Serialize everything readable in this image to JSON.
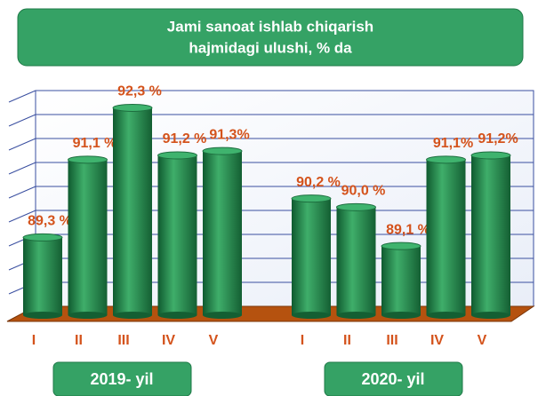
{
  "chart_data": {
    "type": "bar",
    "title": [
      "Jami sanoat ishlab chiqarish",
      "hajmidagi ulushi, % da"
    ],
    "color": "#2e9a5c",
    "ylim": [
      87.5,
      92.7
    ],
    "groups": [
      {
        "label": "2019- yil",
        "categories": [
          "I",
          "II",
          "III",
          "IV",
          "V"
        ],
        "values": [
          89.3,
          91.1,
          92.3,
          91.2,
          91.3
        ],
        "value_labels": [
          "89,3 %",
          "91,1 %",
          "92,3 %",
          "91,2 %",
          "91,3%"
        ]
      },
      {
        "label": "2020- yil",
        "categories": [
          "I",
          "II",
          "III",
          "IV",
          "V"
        ],
        "values": [
          90.2,
          90.0,
          89.1,
          91.1,
          91.2
        ],
        "value_labels": [
          "90,2 %",
          "90,0 %",
          "89,1 %",
          "91,1%",
          "91,2%"
        ]
      }
    ]
  }
}
